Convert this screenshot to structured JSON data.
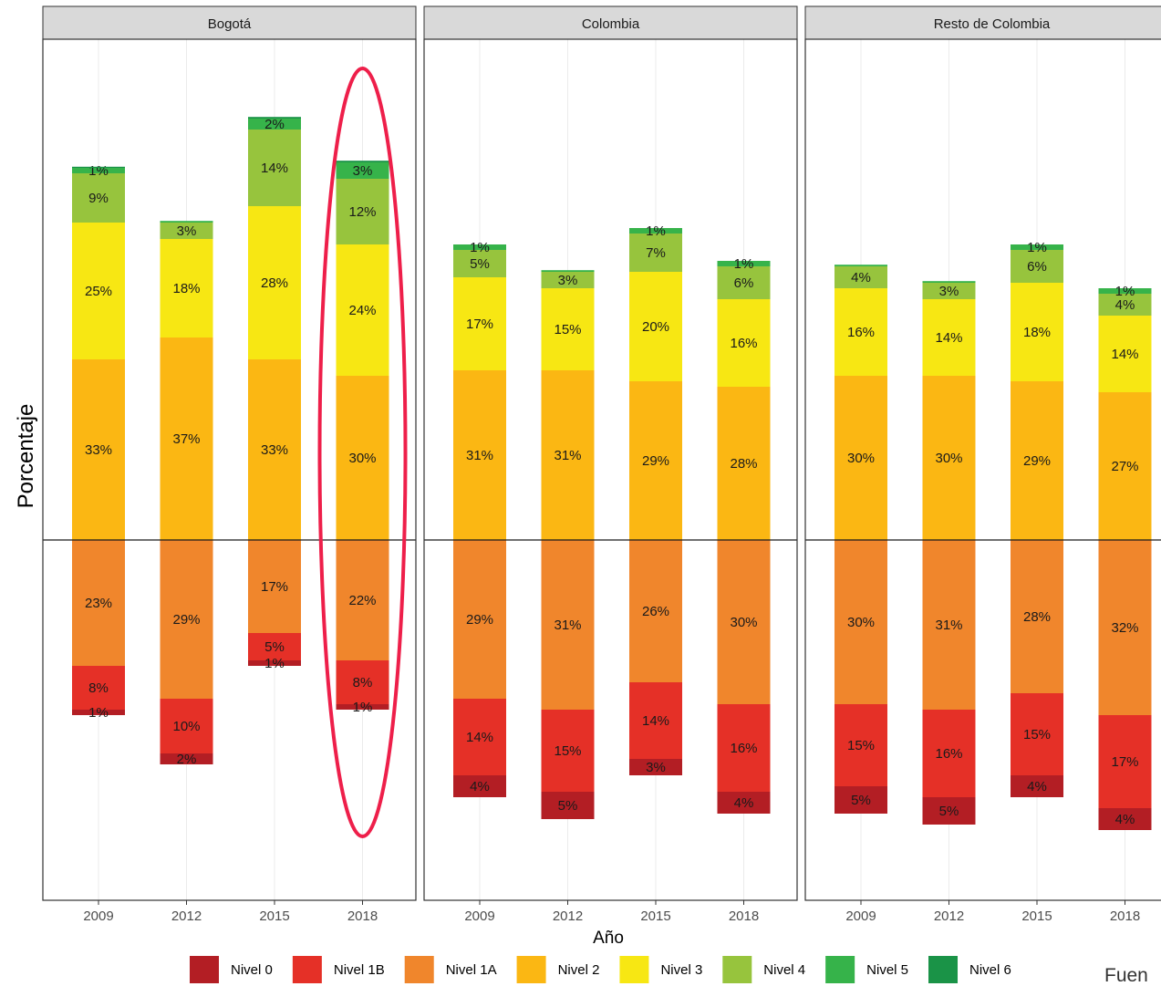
{
  "chart_data": {
    "type": "bar",
    "stacking": "diverging",
    "xlabel": "Año",
    "ylabel": "Porcentaje",
    "categories": [
      "2009",
      "2012",
      "2015",
      "2018"
    ],
    "source_text": "Fuen",
    "levels": [
      {
        "name": "Nivel 0",
        "color": "#b31e24"
      },
      {
        "name": "Nivel 1B",
        "color": "#e53027"
      },
      {
        "name": "Nivel 1A",
        "color": "#f0862c"
      },
      {
        "name": "Nivel 2",
        "color": "#fbb713"
      },
      {
        "name": "Nivel 3",
        "color": "#f7e713"
      },
      {
        "name": "Nivel 4",
        "color": "#97c43d"
      },
      {
        "name": "Nivel 5",
        "color": "#36b34a"
      },
      {
        "name": "Nivel 6",
        "color": "#1a9347"
      }
    ],
    "panels": [
      {
        "title": "Bogotá",
        "highlight_category": "2018",
        "values": [
          {
            "Nivel 0": 1,
            "Nivel 1B": 8,
            "Nivel 1A": 23,
            "Nivel 2": 33,
            "Nivel 3": 25,
            "Nivel 4": 9,
            "Nivel 5": 1,
            "Nivel 6": 0.2
          },
          {
            "Nivel 0": 2,
            "Nivel 1B": 10,
            "Nivel 1A": 29,
            "Nivel 2": 37,
            "Nivel 3": 18,
            "Nivel 4": 3,
            "Nivel 5": 0.3,
            "Nivel 6": 0
          },
          {
            "Nivel 0": 1,
            "Nivel 1B": 5,
            "Nivel 1A": 17,
            "Nivel 2": 33,
            "Nivel 3": 28,
            "Nivel 4": 14,
            "Nivel 5": 2,
            "Nivel 6": 0.3
          },
          {
            "Nivel 0": 1,
            "Nivel 1B": 8,
            "Nivel 1A": 22,
            "Nivel 2": 30,
            "Nivel 3": 24,
            "Nivel 4": 12,
            "Nivel 5": 3,
            "Nivel 6": 0.3
          }
        ],
        "labels": [
          {
            "Nivel 0": "1%",
            "Nivel 1B": "8%",
            "Nivel 1A": "23%",
            "Nivel 2": "33%",
            "Nivel 3": "25%",
            "Nivel 4": "9%",
            "Nivel 5": "1%"
          },
          {
            "Nivel 0": "2%",
            "Nivel 1B": "10%",
            "Nivel 1A": "29%",
            "Nivel 2": "37%",
            "Nivel 3": "18%",
            "Nivel 4": "3%"
          },
          {
            "Nivel 0": "1%",
            "Nivel 1B": "5%",
            "Nivel 1A": "17%",
            "Nivel 2": "33%",
            "Nivel 3": "28%",
            "Nivel 4": "14%",
            "Nivel 5": "2%"
          },
          {
            "Nivel 0": "1%",
            "Nivel 1B": "8%",
            "Nivel 1A": "22%",
            "Nivel 2": "30%",
            "Nivel 3": "24%",
            "Nivel 4": "12%",
            "Nivel 5": "3%"
          }
        ]
      },
      {
        "title": "Colombia",
        "values": [
          {
            "Nivel 0": 4,
            "Nivel 1B": 14,
            "Nivel 1A": 29,
            "Nivel 2": 31,
            "Nivel 3": 17,
            "Nivel 4": 5,
            "Nivel 5": 1,
            "Nivel 6": 0
          },
          {
            "Nivel 0": 5,
            "Nivel 1B": 15,
            "Nivel 1A": 31,
            "Nivel 2": 31,
            "Nivel 3": 15,
            "Nivel 4": 3,
            "Nivel 5": 0.3,
            "Nivel 6": 0
          },
          {
            "Nivel 0": 3,
            "Nivel 1B": 14,
            "Nivel 1A": 26,
            "Nivel 2": 29,
            "Nivel 3": 20,
            "Nivel 4": 7,
            "Nivel 5": 1,
            "Nivel 6": 0
          },
          {
            "Nivel 0": 4,
            "Nivel 1B": 16,
            "Nivel 1A": 30,
            "Nivel 2": 28,
            "Nivel 3": 16,
            "Nivel 4": 6,
            "Nivel 5": 1,
            "Nivel 6": 0
          }
        ],
        "labels": [
          {
            "Nivel 0": "4%",
            "Nivel 1B": "14%",
            "Nivel 1A": "29%",
            "Nivel 2": "31%",
            "Nivel 3": "17%",
            "Nivel 4": "5%",
            "Nivel 5": "1%"
          },
          {
            "Nivel 0": "5%",
            "Nivel 1B": "15%",
            "Nivel 1A": "31%",
            "Nivel 2": "31%",
            "Nivel 3": "15%",
            "Nivel 4": "3%"
          },
          {
            "Nivel 0": "3%",
            "Nivel 1B": "14%",
            "Nivel 1A": "26%",
            "Nivel 2": "29%",
            "Nivel 3": "20%",
            "Nivel 4": "7%",
            "Nivel 5": "1%"
          },
          {
            "Nivel 0": "4%",
            "Nivel 1B": "16%",
            "Nivel 1A": "30%",
            "Nivel 2": "28%",
            "Nivel 3": "16%",
            "Nivel 4": "6%",
            "Nivel 5": "1%"
          }
        ]
      },
      {
        "title": "Resto de Colombia",
        "values": [
          {
            "Nivel 0": 5,
            "Nivel 1B": 15,
            "Nivel 1A": 30,
            "Nivel 2": 30,
            "Nivel 3": 16,
            "Nivel 4": 4,
            "Nivel 5": 0.3,
            "Nivel 6": 0
          },
          {
            "Nivel 0": 5,
            "Nivel 1B": 16,
            "Nivel 1A": 31,
            "Nivel 2": 30,
            "Nivel 3": 14,
            "Nivel 4": 3,
            "Nivel 5": 0.3,
            "Nivel 6": 0
          },
          {
            "Nivel 0": 4,
            "Nivel 1B": 15,
            "Nivel 1A": 28,
            "Nivel 2": 29,
            "Nivel 3": 18,
            "Nivel 4": 6,
            "Nivel 5": 1,
            "Nivel 6": 0
          },
          {
            "Nivel 0": 4,
            "Nivel 1B": 17,
            "Nivel 1A": 32,
            "Nivel 2": 27,
            "Nivel 3": 14,
            "Nivel 4": 4,
            "Nivel 5": 1,
            "Nivel 6": 0
          }
        ],
        "labels": [
          {
            "Nivel 0": "5%",
            "Nivel 1B": "15%",
            "Nivel 1A": "30%",
            "Nivel 2": "30%",
            "Nivel 3": "16%",
            "Nivel 4": "4%"
          },
          {
            "Nivel 0": "5%",
            "Nivel 1B": "16%",
            "Nivel 1A": "31%",
            "Nivel 2": "30%",
            "Nivel 3": "14%",
            "Nivel 4": "3%"
          },
          {
            "Nivel 0": "4%",
            "Nivel 1B": "15%",
            "Nivel 1A": "28%",
            "Nivel 2": "29%",
            "Nivel 3": "18%",
            "Nivel 4": "6%",
            "Nivel 5": "1%"
          },
          {
            "Nivel 0": "4%",
            "Nivel 1B": "17%",
            "Nivel 1A": "32%",
            "Nivel 2": "27%",
            "Nivel 3": "14%",
            "Nivel 4": "4%",
            "Nivel 5": "1%"
          }
        ]
      }
    ]
  }
}
